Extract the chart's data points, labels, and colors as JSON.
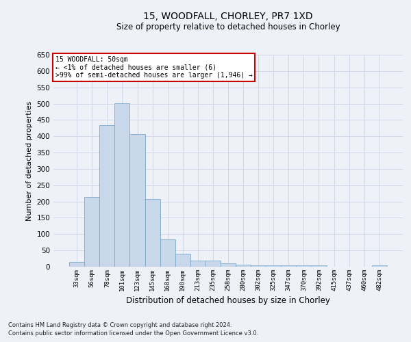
{
  "title1": "15, WOODFALL, CHORLEY, PR7 1XD",
  "title2": "Size of property relative to detached houses in Chorley",
  "xlabel": "Distribution of detached houses by size in Chorley",
  "ylabel": "Number of detached properties",
  "footer1": "Contains HM Land Registry data © Crown copyright and database right 2024.",
  "footer2": "Contains public sector information licensed under the Open Government Licence v3.0.",
  "annotation_line1": "15 WOODFALL: 50sqm",
  "annotation_line2": "← <1% of detached houses are smaller (6)",
  "annotation_line3": ">99% of semi-detached houses are larger (1,946) →",
  "bar_color": "#c8d8ea",
  "bar_edge_color": "#7aaaca",
  "annotation_box_color": "#ffffff",
  "annotation_box_edge": "#cc0000",
  "categories": [
    "33sqm",
    "56sqm",
    "78sqm",
    "101sqm",
    "123sqm",
    "145sqm",
    "168sqm",
    "190sqm",
    "213sqm",
    "235sqm",
    "258sqm",
    "280sqm",
    "302sqm",
    "325sqm",
    "347sqm",
    "370sqm",
    "392sqm",
    "415sqm",
    "437sqm",
    "460sqm",
    "482sqm"
  ],
  "values": [
    15,
    213,
    435,
    502,
    407,
    207,
    84,
    39,
    18,
    18,
    11,
    6,
    4,
    4,
    4,
    4,
    4,
    1,
    1,
    1,
    4
  ],
  "ylim": [
    0,
    650
  ],
  "yticks": [
    0,
    50,
    100,
    150,
    200,
    250,
    300,
    350,
    400,
    450,
    500,
    550,
    600,
    650
  ],
  "grid_color": "#d0d8ea",
  "bg_color": "#eef2f8"
}
